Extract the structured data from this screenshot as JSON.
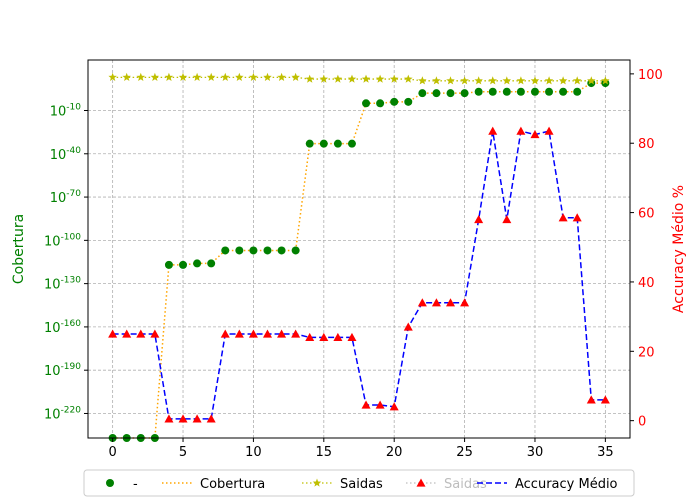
{
  "chart_data": {
    "type": "line",
    "x": [
      0,
      1,
      2,
      3,
      4,
      5,
      6,
      7,
      8,
      9,
      10,
      11,
      12,
      13,
      14,
      15,
      16,
      17,
      18,
      19,
      20,
      21,
      22,
      23,
      24,
      25,
      26,
      27,
      28,
      29,
      30,
      31,
      32,
      33,
      34,
      35
    ],
    "xlim": [
      -1.75,
      36.75
    ],
    "xticks": [
      0,
      5,
      10,
      15,
      20,
      25,
      30,
      35
    ],
    "left_axis": {
      "label": "Cobertura",
      "scale": "log",
      "color": "#008000",
      "ylim_exp": [
        -237,
        25
      ],
      "ticks": [
        {
          "exp": -10,
          "label": "10^-10"
        },
        {
          "exp": -40,
          "label": "10^-40"
        },
        {
          "exp": -70,
          "label": "10^-70"
        },
        {
          "exp": -100,
          "label": "10^-100"
        },
        {
          "exp": -130,
          "label": "10^-130"
        },
        {
          "exp": -160,
          "label": "10^-160"
        },
        {
          "exp": -190,
          "label": "10^-190"
        },
        {
          "exp": -220,
          "label": "10^-220"
        }
      ]
    },
    "right_axis": {
      "label": "Accuracy Médio %",
      "scale": "linear",
      "color": "#ff0000",
      "ylim": [
        -5,
        104
      ],
      "ticks": [
        0,
        20,
        40,
        60,
        80,
        100
      ]
    },
    "grid": true,
    "series": [
      {
        "name": "-",
        "axis": "left",
        "style": "markers",
        "marker": "circle",
        "color": "#008000",
        "values_log10": [
          -237,
          -237,
          -237,
          -237,
          -117,
          -117,
          -116,
          -116,
          -107,
          -107,
          -107,
          -107,
          -107,
          -107,
          -33,
          -33,
          -33,
          -33,
          -5,
          -5,
          -4,
          -4,
          2,
          2,
          2,
          2,
          3,
          3,
          3,
          3,
          3,
          3,
          3,
          3,
          9,
          9
        ]
      },
      {
        "name": "Cobertura",
        "axis": "left",
        "style": "dotted",
        "color": "#ffa500",
        "values_log10": [
          -237,
          -237,
          -237,
          -237,
          -117,
          -117,
          -116,
          -116,
          -107,
          -107,
          -107,
          -107,
          -107,
          -107,
          -33,
          -33,
          -33,
          -33,
          -5,
          -5,
          -4,
          -4,
          2,
          2,
          2,
          2,
          3,
          3,
          3,
          3,
          3,
          3,
          3,
          3,
          9,
          9
        ]
      },
      {
        "name": "Saidas",
        "axis": "right",
        "style": "dotted-star",
        "marker": "star",
        "color": "#bfbf00",
        "values": [
          99,
          99,
          99,
          99,
          99,
          99,
          99,
          99,
          99,
          99,
          99,
          99,
          99,
          99,
          98.5,
          98.5,
          98.5,
          98.5,
          98.5,
          98.5,
          98.5,
          98.5,
          98,
          98,
          98,
          98,
          98,
          98,
          98,
          98,
          98,
          98,
          98,
          98,
          98,
          98
        ]
      },
      {
        "name": "Saidas",
        "axis": "right",
        "style": "dotted-triangle",
        "marker": "triangle",
        "color": "#ff0000",
        "values": [
          25,
          25,
          25,
          25,
          0.5,
          0.5,
          0.5,
          0.5,
          25,
          25,
          25,
          25,
          25,
          25,
          24,
          24,
          24,
          24,
          4.5,
          4.5,
          4,
          27,
          34,
          34,
          34,
          34,
          58,
          83.5,
          58,
          83.5,
          82.5,
          83.5,
          58.5,
          58.5,
          6,
          6
        ]
      },
      {
        "name": "Accuracy Médio",
        "axis": "right",
        "style": "dashed",
        "color": "#0000ff",
        "values": [
          25,
          25,
          25,
          25,
          0.5,
          0.5,
          0.5,
          0.5,
          25,
          25,
          25,
          25,
          25,
          25,
          24,
          24,
          24,
          24,
          4.5,
          4.5,
          4,
          27,
          34,
          34,
          34,
          34,
          58,
          83.5,
          58,
          83.5,
          82.5,
          83.5,
          58.5,
          58.5,
          6,
          6
        ]
      }
    ],
    "legend": {
      "placement": "bottom-center",
      "entries": [
        "-",
        "Cobertura",
        "Saidas",
        "Saidas",
        "Accuracy Médio"
      ]
    }
  }
}
